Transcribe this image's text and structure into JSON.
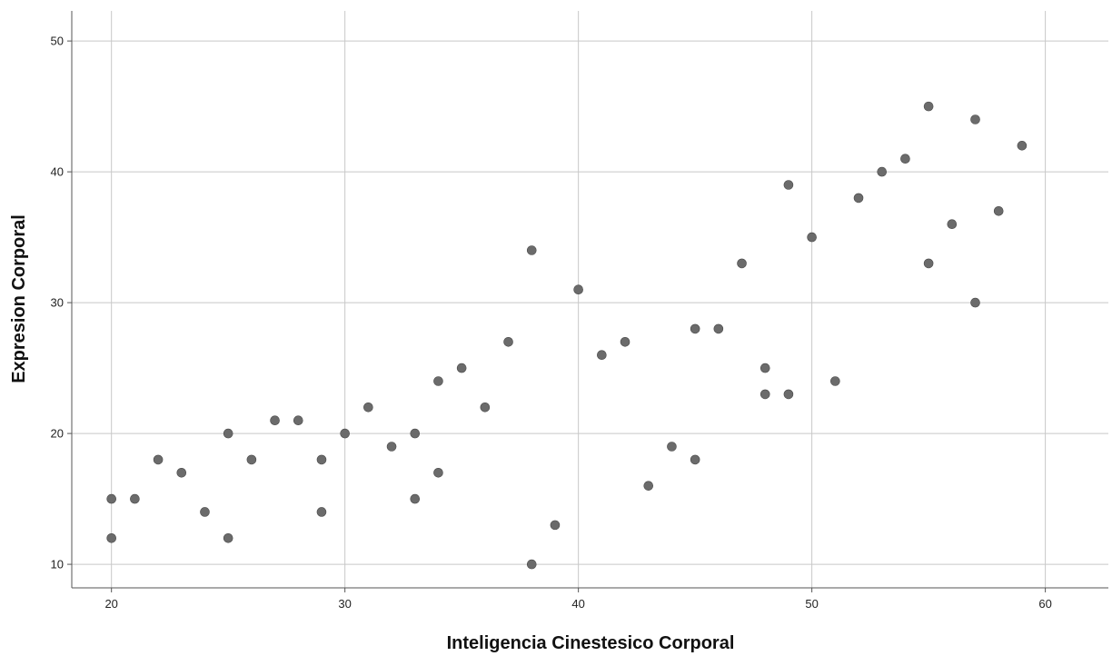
{
  "chart_data": {
    "type": "scatter",
    "title": "",
    "xlabel": "Inteligencia Cinestesico Corporal",
    "ylabel": "Expresion Corporal",
    "xlim": [
      18.3,
      62.7
    ],
    "ylim": [
      8.2,
      52.3
    ],
    "xticks": [
      "20",
      "30",
      "40",
      "50",
      "60"
    ],
    "yticks": [
      "10",
      "20",
      "30",
      "40",
      "50"
    ],
    "grid": true,
    "legend": "none",
    "point_color": "#6b6b6b",
    "grid_color": "#c8c8c8",
    "series": [
      {
        "points": [
          [
            20,
            15
          ],
          [
            20,
            12
          ],
          [
            21,
            15
          ],
          [
            22,
            18
          ],
          [
            23,
            17
          ],
          [
            24,
            14
          ],
          [
            25,
            20
          ],
          [
            25,
            12
          ],
          [
            26,
            18
          ],
          [
            27,
            21
          ],
          [
            28,
            21
          ],
          [
            29,
            18
          ],
          [
            29,
            14
          ],
          [
            30,
            20
          ],
          [
            31,
            22
          ],
          [
            32,
            19
          ],
          [
            33,
            20
          ],
          [
            33,
            15
          ],
          [
            34,
            24
          ],
          [
            34,
            17
          ],
          [
            35,
            25
          ],
          [
            36,
            22
          ],
          [
            37,
            27
          ],
          [
            38,
            34
          ],
          [
            38,
            10
          ],
          [
            39,
            13
          ],
          [
            40,
            31
          ],
          [
            41,
            26
          ],
          [
            42,
            27
          ],
          [
            43,
            16
          ],
          [
            44,
            19
          ],
          [
            45,
            28
          ],
          [
            45,
            18
          ],
          [
            46,
            28
          ],
          [
            47,
            33
          ],
          [
            48,
            25
          ],
          [
            48,
            23
          ],
          [
            49,
            39
          ],
          [
            49,
            23
          ],
          [
            50,
            35
          ],
          [
            51,
            24
          ],
          [
            52,
            38
          ],
          [
            53,
            40
          ],
          [
            54,
            41
          ],
          [
            55,
            45
          ],
          [
            55,
            33
          ],
          [
            56,
            36
          ],
          [
            57,
            44
          ],
          [
            57,
            30
          ],
          [
            58,
            37
          ],
          [
            59,
            42
          ]
        ]
      }
    ]
  }
}
